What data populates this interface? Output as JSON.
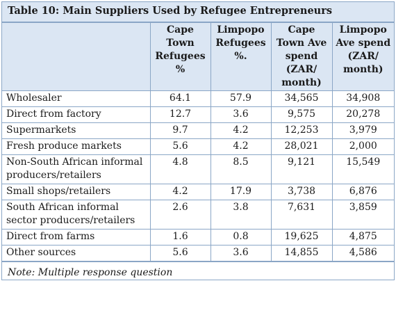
{
  "title": "Table 10: Main Suppliers Used by Refugee Entrepreneurs",
  "headers": [
    "",
    "Cape Town Refugees %",
    "Limpopo Refugees %.",
    "Cape Town Ave spend (ZAR/ month)",
    "Limpopo Ave spend (ZAR/ month)"
  ],
  "rows": [
    [
      "Wholesaler",
      "64.1",
      "57.9",
      "34,565",
      "34,908"
    ],
    [
      "Direct from factory",
      "12.7",
      "3.6",
      "9,575",
      "20,278"
    ],
    [
      "Supermarkets",
      "9.7",
      "4.2",
      "12,253",
      "3,979"
    ],
    [
      "Fresh produce markets",
      "5.6",
      "4.2",
      "28,021",
      "2,000"
    ],
    [
      "Non-South African informal producers/retailers",
      "4.8",
      "8.5",
      "9,121",
      "15,549"
    ],
    [
      "Small shops/retailers",
      "4.2",
      "17.9",
      "3,738",
      "6,876"
    ],
    [
      "South African informal sector producers/retailers",
      "2.6",
      "3.8",
      "7,631",
      "3,859"
    ],
    [
      "Direct from farms",
      "1.6",
      "0.8",
      "19,625",
      "4,875"
    ],
    [
      "Other sources",
      "5.6",
      "3.6",
      "14,855",
      "4,586"
    ]
  ],
  "note": "Note: Multiple response question",
  "colors": {
    "header_bg": "#dbe6f3",
    "border": "#8aa6c6",
    "body_bg": "#ffffff"
  }
}
